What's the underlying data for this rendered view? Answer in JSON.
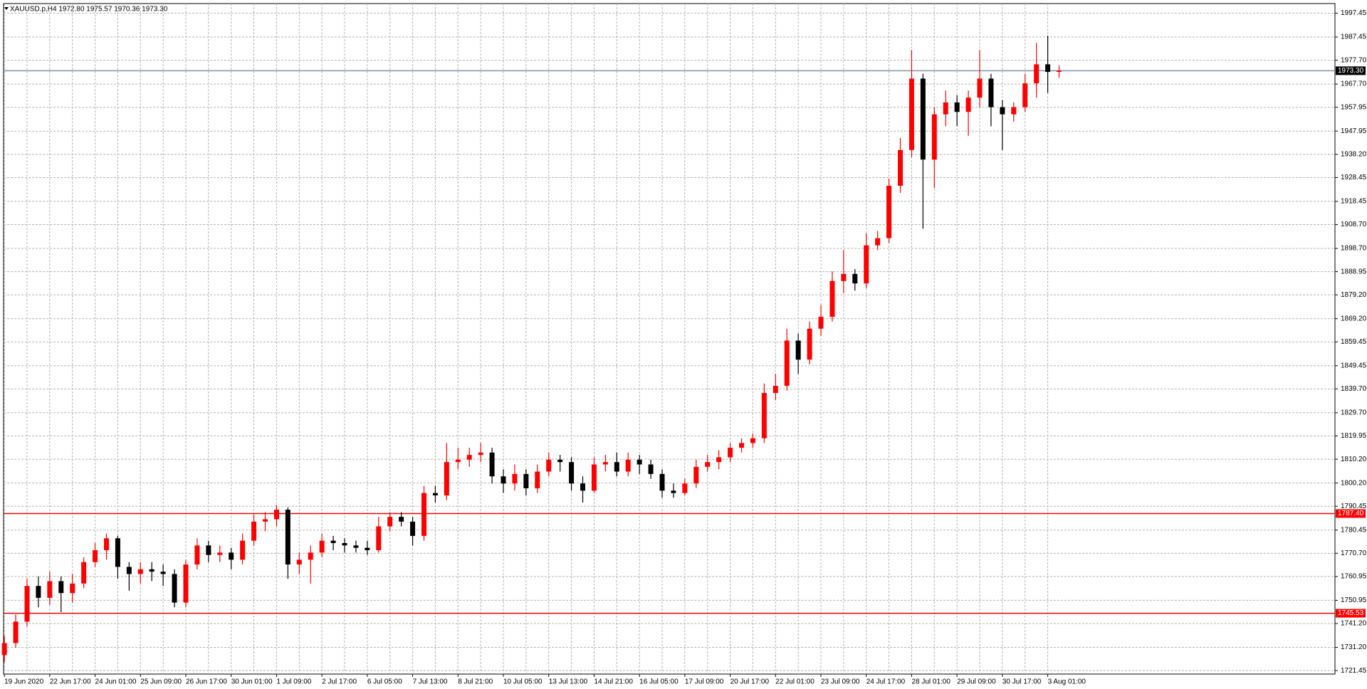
{
  "chart_data": {
    "type": "candlestick",
    "title": "XAUUSD.p,H4  1972.80 1975.57 1970.36 1973.30",
    "categories": [
      "19 Jun 2020",
      null,
      null,
      null,
      "22 Jun 17:00",
      null,
      null,
      null,
      "24 Jun 01:00",
      null,
      null,
      null,
      "25 Jun 09:00",
      null,
      null,
      null,
      "26 Jun 17:00",
      null,
      null,
      null,
      "30 Jun 01:00",
      null,
      null,
      null,
      "1 Jul 09:00",
      null,
      null,
      null,
      "2 Jul 17:00",
      null,
      null,
      null,
      "6 Jul 05:00",
      null,
      null,
      null,
      "7 Jul 13:00",
      null,
      null,
      null,
      "8 Jul 21:00",
      null,
      null,
      null,
      "10 Jul 05:00",
      null,
      null,
      null,
      "13 Jul 13:00",
      null,
      null,
      null,
      "14 Jul 21:00",
      null,
      null,
      null,
      "16 Jul 05:00",
      null,
      null,
      null,
      "17 Jul 09:00",
      null,
      null,
      null,
      "20 Jul 17:00",
      null,
      null,
      null,
      "22 Jul 01:00",
      null,
      null,
      null,
      "23 Jul 09:00",
      null,
      null,
      null,
      "24 Jul 17:00",
      null,
      null,
      null,
      "28 Jul 01:00",
      null,
      null,
      null,
      "29 Jul 09:00",
      null,
      null,
      null,
      "30 Jul 17:00",
      null,
      null,
      null,
      "3 Aug 01:00",
      null
    ],
    "ohlc": [
      [
        1728,
        1736,
        1725,
        1733
      ],
      [
        1733,
        1745,
        1731,
        1742
      ],
      [
        1742,
        1760,
        1740,
        1757
      ],
      [
        1757,
        1761,
        1748,
        1752
      ],
      [
        1752,
        1763,
        1749,
        1759
      ],
      [
        1759,
        1761,
        1746,
        1754
      ],
      [
        1754,
        1762,
        1750,
        1758
      ],
      [
        1758,
        1769,
        1756,
        1767
      ],
      [
        1767,
        1775,
        1765,
        1772
      ],
      [
        1772,
        1779,
        1768,
        1777
      ],
      [
        1777,
        1778,
        1760,
        1765
      ],
      [
        1765,
        1767,
        1755,
        1762
      ],
      [
        1762,
        1767,
        1758,
        1764
      ],
      [
        1764,
        1767,
        1759,
        1763
      ],
      [
        1763,
        1766,
        1757,
        1762
      ],
      [
        1762,
        1764,
        1748,
        1750
      ],
      [
        1750,
        1768,
        1748,
        1766
      ],
      [
        1766,
        1777,
        1764,
        1774
      ],
      [
        1774,
        1776,
        1767,
        1770
      ],
      [
        1770,
        1774,
        1767,
        1771
      ],
      [
        1771,
        1773,
        1764,
        1768
      ],
      [
        1768,
        1779,
        1766,
        1776
      ],
      [
        1776,
        1787,
        1774,
        1784
      ],
      [
        1784,
        1788,
        1780,
        1785
      ],
      [
        1785,
        1791,
        1782,
        1789
      ],
      [
        1789,
        1790,
        1760,
        1766
      ],
      [
        1766,
        1771,
        1762,
        1768
      ],
      [
        1768,
        1774,
        1758,
        1771
      ],
      [
        1771,
        1779,
        1769,
        1776
      ],
      [
        1776,
        1778,
        1772,
        1775
      ],
      [
        1775,
        1777,
        1771,
        1774
      ],
      [
        1774,
        1776,
        1771,
        1773
      ],
      [
        1773,
        1776,
        1770,
        1772
      ],
      [
        1772,
        1786,
        1771,
        1782
      ],
      [
        1782,
        1788,
        1780,
        1786
      ],
      [
        1786,
        1788,
        1782,
        1784
      ],
      [
        1784,
        1786,
        1774,
        1778
      ],
      [
        1778,
        1799,
        1776,
        1796
      ],
      [
        1796,
        1799,
        1792,
        1795
      ],
      [
        1795,
        1817,
        1793,
        1809
      ],
      [
        1809,
        1815,
        1806,
        1810
      ],
      [
        1810,
        1815,
        1807,
        1812
      ],
      [
        1812,
        1817,
        1809,
        1813
      ],
      [
        1813,
        1815,
        1800,
        1803
      ],
      [
        1803,
        1806,
        1796,
        1800
      ],
      [
        1800,
        1808,
        1797,
        1804
      ],
      [
        1804,
        1806,
        1795,
        1798
      ],
      [
        1798,
        1808,
        1796,
        1805
      ],
      [
        1805,
        1813,
        1803,
        1810
      ],
      [
        1810,
        1812,
        1805,
        1809
      ],
      [
        1809,
        1811,
        1797,
        1800
      ],
      [
        1800,
        1803,
        1792,
        1797
      ],
      [
        1797,
        1811,
        1796,
        1808
      ],
      [
        1808,
        1812,
        1805,
        1809
      ],
      [
        1809,
        1813,
        1803,
        1805
      ],
      [
        1805,
        1813,
        1803,
        1810
      ],
      [
        1810,
        1812,
        1804,
        1808
      ],
      [
        1808,
        1810,
        1802,
        1804
      ],
      [
        1804,
        1806,
        1794,
        1797
      ],
      [
        1797,
        1800,
        1794,
        1796
      ],
      [
        1796,
        1802,
        1795,
        1800
      ],
      [
        1800,
        1810,
        1798,
        1807
      ],
      [
        1807,
        1812,
        1805,
        1809
      ],
      [
        1809,
        1814,
        1806,
        1811
      ],
      [
        1811,
        1817,
        1809,
        1815
      ],
      [
        1815,
        1819,
        1813,
        1817
      ],
      [
        1817,
        1821,
        1815,
        1819
      ],
      [
        1819,
        1842,
        1817,
        1838
      ],
      [
        1838,
        1846,
        1835,
        1841
      ],
      [
        1841,
        1865,
        1839,
        1860
      ],
      [
        1860,
        1863,
        1846,
        1852
      ],
      [
        1852,
        1868,
        1850,
        1865
      ],
      [
        1865,
        1875,
        1862,
        1870
      ],
      [
        1870,
        1889,
        1868,
        1885
      ],
      [
        1885,
        1898,
        1880,
        1888
      ],
      [
        1888,
        1890,
        1881,
        1884
      ],
      [
        1884,
        1905,
        1882,
        1900
      ],
      [
        1900,
        1906,
        1898,
        1903
      ],
      [
        1903,
        1928,
        1901,
        1925
      ],
      [
        1925,
        1945,
        1922,
        1940
      ],
      [
        1940,
        1982,
        1937,
        1970
      ],
      [
        1970,
        1972,
        1907,
        1936
      ],
      [
        1936,
        1958,
        1924,
        1955
      ],
      [
        1955,
        1965,
        1950,
        1960
      ],
      [
        1960,
        1963,
        1950,
        1956
      ],
      [
        1956,
        1965,
        1946,
        1962
      ],
      [
        1962,
        1982,
        1958,
        1970
      ],
      [
        1970,
        1972,
        1950,
        1958
      ],
      [
        1958,
        1961,
        1940,
        1955
      ],
      [
        1955,
        1960,
        1952,
        1958
      ],
      [
        1958,
        1972,
        1956,
        1968
      ],
      [
        1968,
        1985,
        1962,
        1976
      ],
      [
        1976,
        1988,
        1964,
        1972.8
      ],
      [
        1972.8,
        1975.57,
        1970.36,
        1973.3
      ]
    ],
    "up_color": "#ff0000",
    "down_color": "#000000",
    "ylim": [
      1720.0,
      2001.5
    ],
    "yticks": [
      1997.45,
      1987.45,
      {
        "value": 1977.7,
        "label": "1977.70"
      },
      {
        "value": 1967.7,
        "label": "1967.70"
      },
      1957.95,
      1947.95,
      {
        "value": 1938.2,
        "label": "1938.20"
      },
      1928.45,
      1918.45,
      {
        "value": 1908.7,
        "label": "1908.70"
      },
      {
        "value": 1898.7,
        "label": "1898.70"
      },
      1888.95,
      {
        "value": 1879.2,
        "label": "1879.20"
      },
      {
        "value": 1869.2,
        "label": "1869.20"
      },
      1859.45,
      1849.45,
      {
        "value": 1839.7,
        "label": "1839.70"
      },
      {
        "value": 1829.7,
        "label": "1829.70"
      },
      1819.95,
      {
        "value": 1810.2,
        "label": "1810.20"
      },
      {
        "value": 1800.2,
        "label": "1800.20"
      },
      1790.45,
      1780.45,
      {
        "value": 1770.7,
        "label": "1770.70"
      },
      1760.95,
      1750.95,
      {
        "value": 1741.2,
        "label": "1741.20"
      },
      {
        "value": 1731.2,
        "label": "1731.20"
      },
      1721.45
    ],
    "levels": [
      {
        "value": 1787.4,
        "label": "1787.40",
        "color": "#ff0000"
      },
      {
        "value": 1745.53,
        "label": "1745.53",
        "color": "#ff0000"
      }
    ],
    "last_price": {
      "value": 1973.3,
      "label": "1973.30",
      "color": "#7f93ab"
    },
    "grid": true
  }
}
